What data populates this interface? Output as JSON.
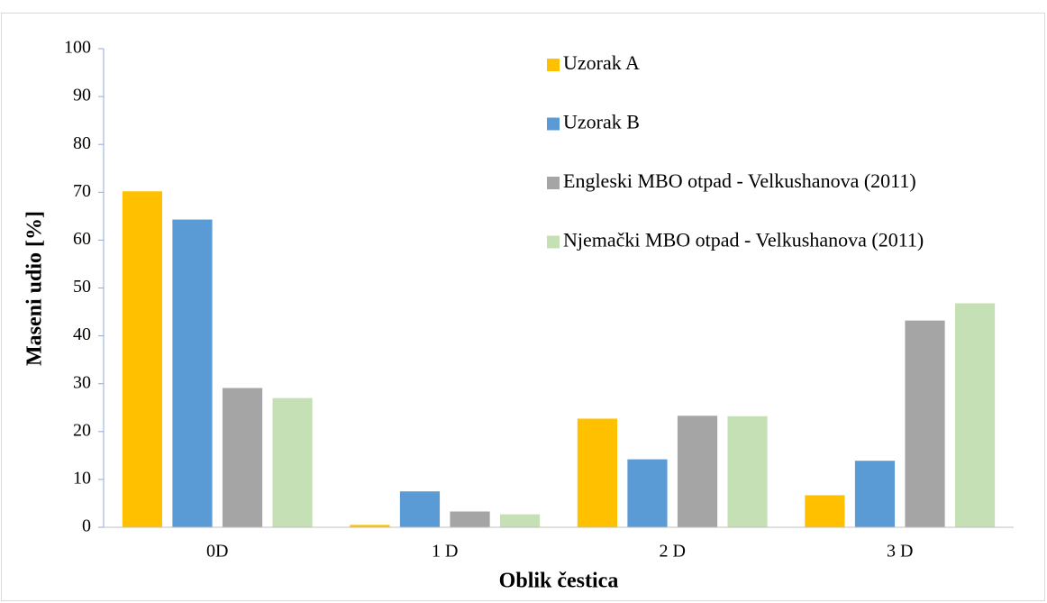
{
  "chart_data": {
    "type": "bar",
    "categories": [
      "0D",
      "1 D",
      "2 D",
      "3 D"
    ],
    "series": [
      {
        "name": "Uzorak A",
        "color": "#ffc000",
        "values": [
          70.2,
          0.5,
          22.7,
          6.7
        ]
      },
      {
        "name": "Uzorak B",
        "color": "#5b9bd5",
        "values": [
          64.3,
          7.5,
          14.2,
          13.9
        ]
      },
      {
        "name": "Engleski MBO otpad - Velkushanova (2011)",
        "color": "#a5a5a5",
        "values": [
          29.1,
          3.3,
          23.3,
          43.2
        ]
      },
      {
        "name": "Njemački MBO otpad - Velkushanova (2011)",
        "color": "#c5e0b4",
        "values": [
          27.0,
          2.7,
          23.2,
          46.8
        ]
      }
    ],
    "xlabel": "Oblik čestica",
    "ylabel": "Maseni udio [%]",
    "ylim": [
      0,
      100
    ],
    "yticks": [
      0,
      10,
      20,
      30,
      40,
      50,
      60,
      70,
      80,
      90,
      100
    ],
    "legend": "upper right"
  }
}
